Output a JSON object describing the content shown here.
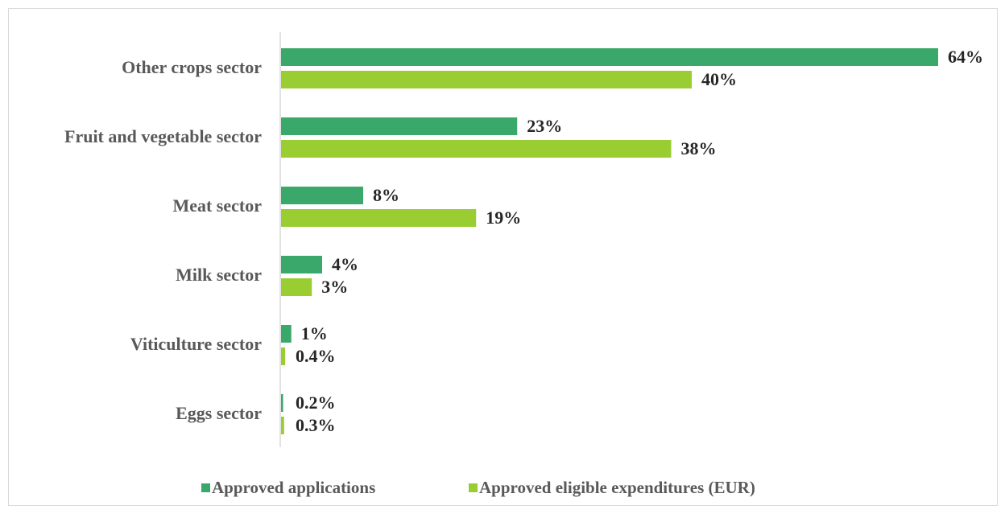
{
  "chart_data": {
    "type": "bar",
    "orientation": "horizontal",
    "categories": [
      "Other crops sector",
      "Fruit and vegetable sector",
      "Meat sector",
      "Milk sector",
      "Viticulture sector",
      "Eggs sector"
    ],
    "series": [
      {
        "name": "Approved applications",
        "color": "#3aa86b",
        "values": [
          64,
          23,
          8,
          4,
          1,
          0.2
        ],
        "value_labels": [
          "64%",
          "23%",
          "8%",
          "4%",
          "1%",
          "0.2%"
        ]
      },
      {
        "name": "Approved eligible expenditures (EUR)",
        "color": "#9acd32",
        "values": [
          40,
          38,
          19,
          3,
          0.4,
          0.3
        ],
        "value_labels": [
          "40%",
          "38%",
          "19%",
          "3%",
          "0.4%",
          "0.3%"
        ]
      }
    ],
    "legend": "bottom"
  }
}
